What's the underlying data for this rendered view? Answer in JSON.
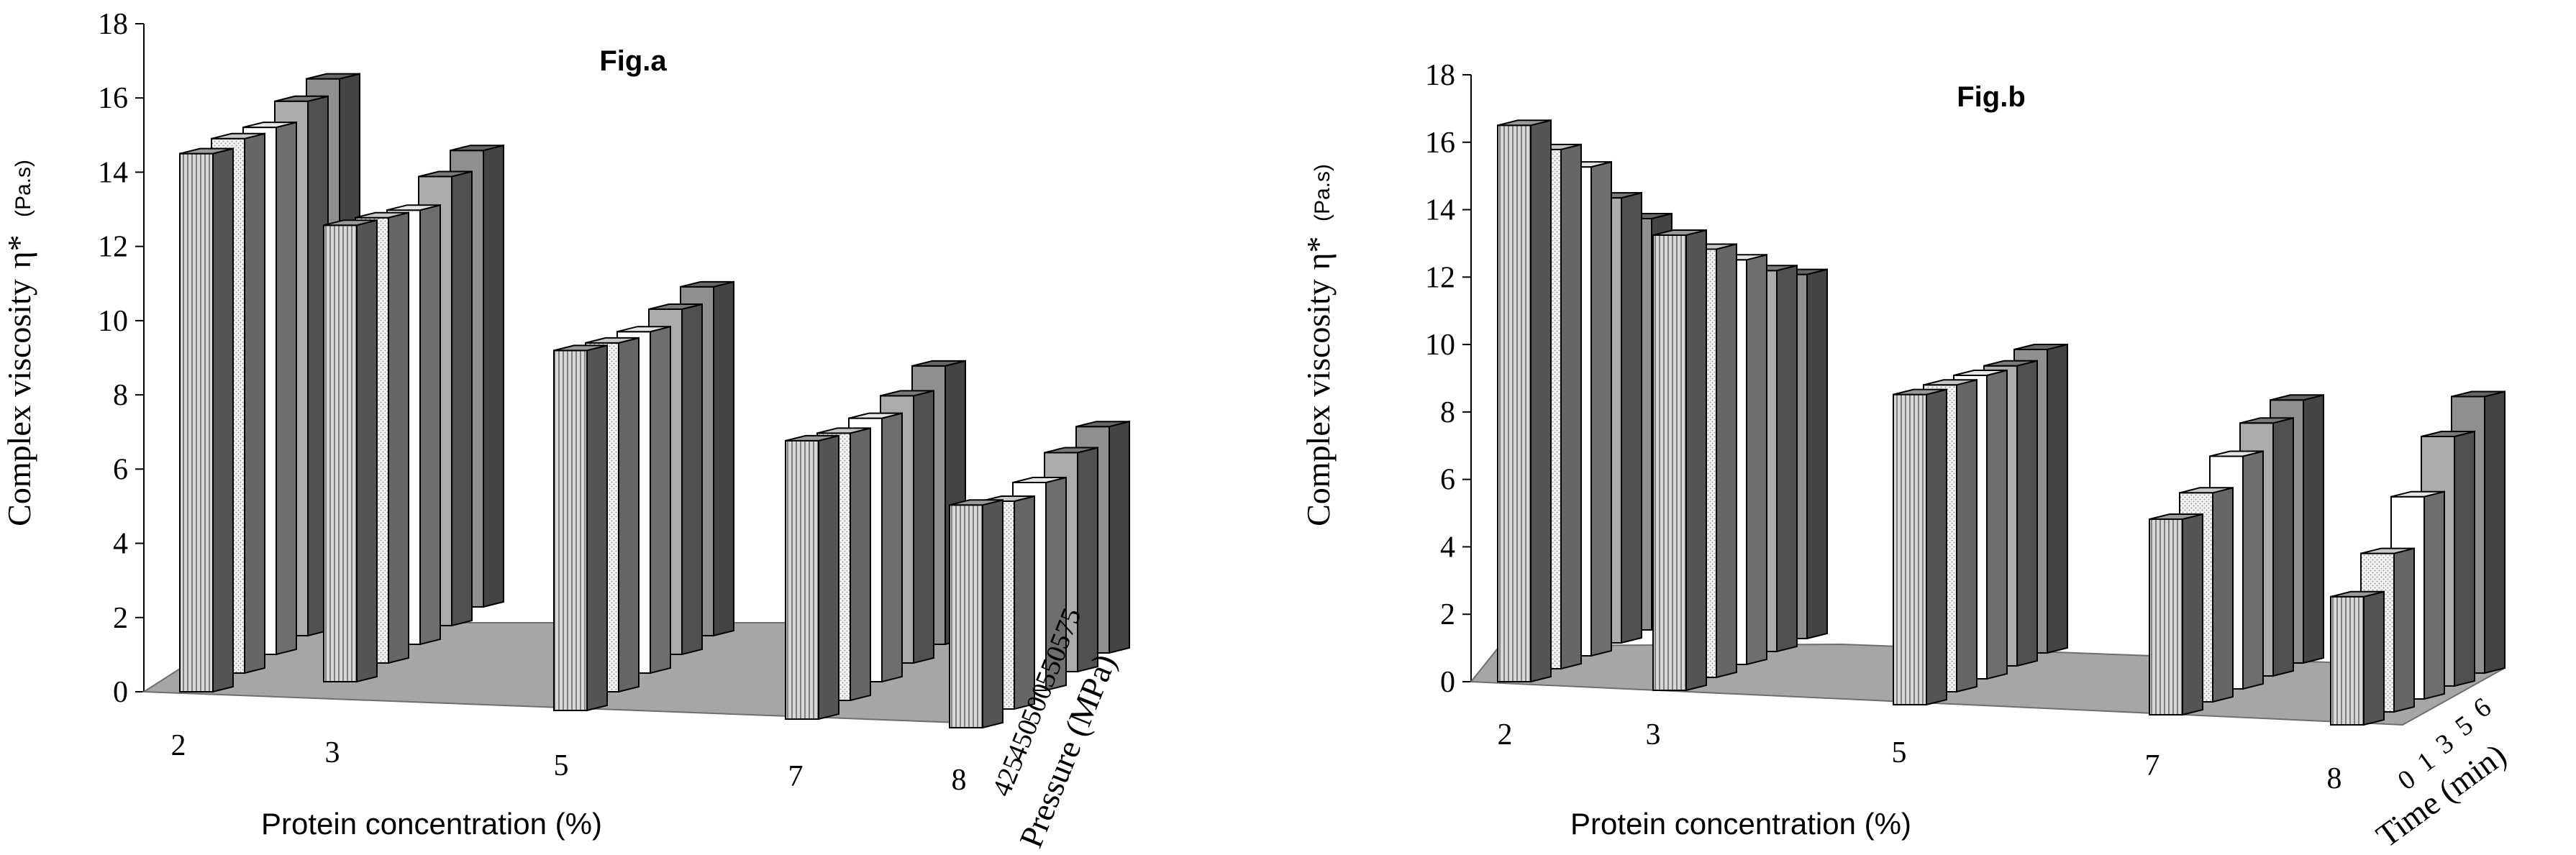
{
  "chart_data": [
    {
      "type": "bar",
      "subtype": "3d-grouped-column",
      "title": "Fig.a",
      "ylabel": "Complex viscosity",
      "ylabel_symbol": "η*",
      "ylabel_unit": "(Pa.s)",
      "xlabel": "Protein concentration (%)",
      "zlabel": "Pressure (MPa)",
      "ylim": [
        0,
        18
      ],
      "yticks": [
        "0",
        "2",
        "4",
        "6",
        "8",
        "10",
        "12",
        "14",
        "16",
        "18"
      ],
      "categories": [
        "2",
        "3",
        "5",
        "7",
        "8"
      ],
      "series": [
        {
          "name": "425",
          "values": [
            14.5,
            12.3,
            9.7,
            7.5,
            6.0
          ]
        },
        {
          "name": "450",
          "values": [
            14.4,
            12.0,
            9.4,
            7.2,
            5.6
          ]
        },
        {
          "name": "500",
          "values": [
            14.2,
            11.7,
            9.2,
            7.1,
            5.6
          ]
        },
        {
          "name": "550",
          "values": [
            14.4,
            12.1,
            9.3,
            7.2,
            5.9
          ]
        },
        {
          "name": "575",
          "values": [
            14.5,
            12.3,
            9.4,
            7.5,
            6.1
          ]
        }
      ]
    },
    {
      "type": "bar",
      "subtype": "3d-grouped-column",
      "title": "Fig.b",
      "ylabel": "Complex viscosity",
      "ylabel_symbol": "η*",
      "ylabel_unit": "(Pa.s)",
      "xlabel": "Protein concentration (%)",
      "zlabel": "Time (min)",
      "ylim": [
        0,
        18
      ],
      "yticks": [
        "0",
        "2",
        "4",
        "6",
        "8",
        "10",
        "12",
        "14",
        "16",
        "18"
      ],
      "categories": [
        "2",
        "3",
        "5",
        "7",
        "8"
      ],
      "series": [
        {
          "name": "0",
          "values": [
            16.5,
            13.5,
            9.2,
            5.8,
            3.8
          ]
        },
        {
          "name": "1",
          "values": [
            15.4,
            12.7,
            9.1,
            6.2,
            4.7
          ]
        },
        {
          "name": "3",
          "values": [
            14.5,
            12.0,
            9.0,
            6.9,
            6.0
          ]
        },
        {
          "name": "5",
          "values": [
            13.2,
            11.3,
            8.9,
            7.5,
            7.4
          ]
        },
        {
          "name": "6",
          "values": [
            12.2,
            10.8,
            9.0,
            7.8,
            8.2
          ]
        }
      ]
    }
  ]
}
